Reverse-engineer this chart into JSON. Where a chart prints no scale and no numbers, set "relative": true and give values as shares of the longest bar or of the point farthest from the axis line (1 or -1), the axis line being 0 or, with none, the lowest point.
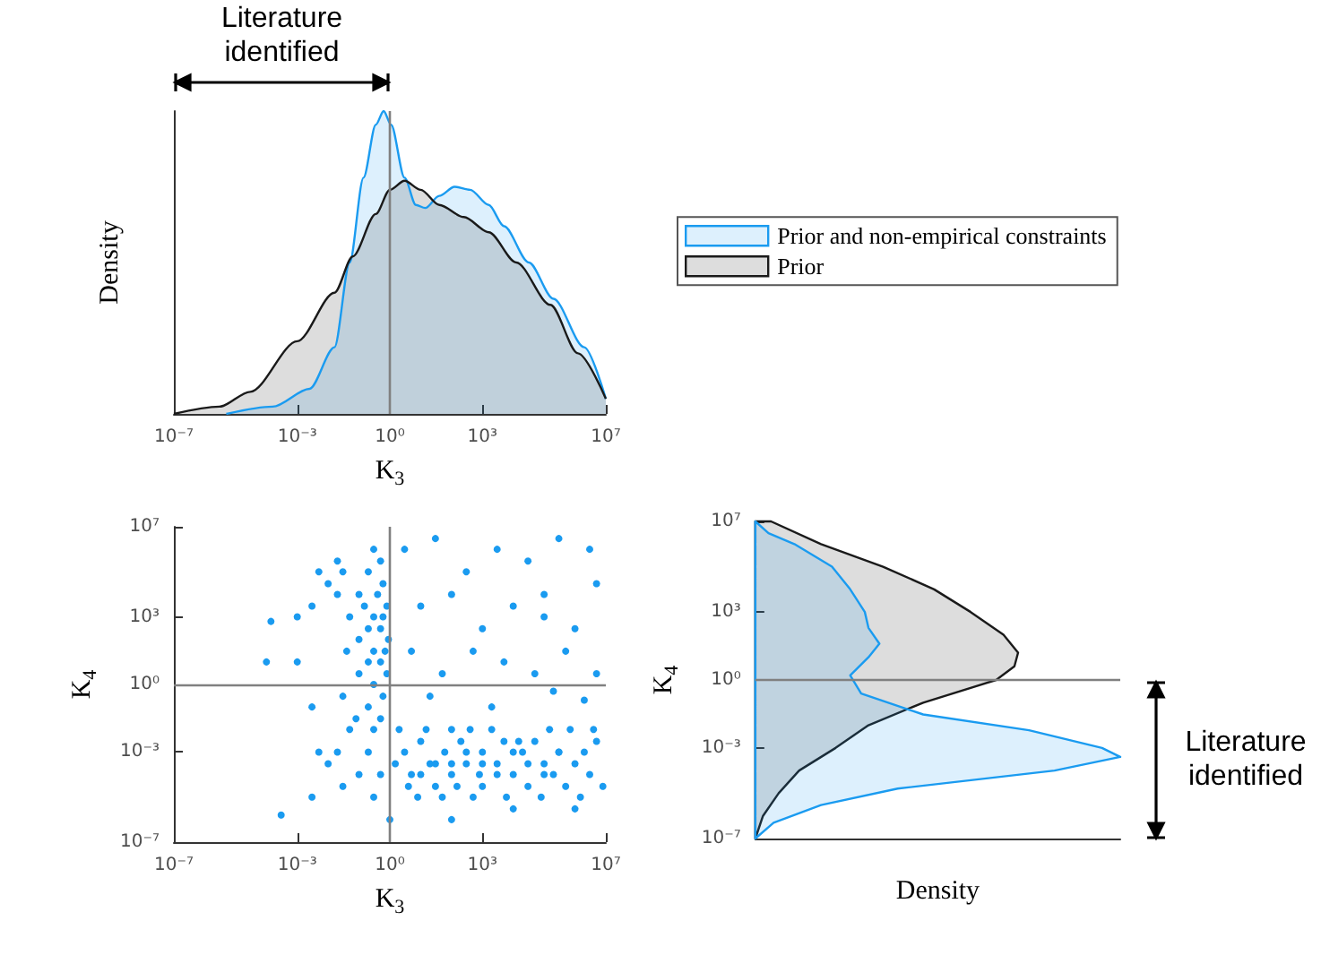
{
  "chart_data": [
    {
      "type": "area",
      "relative": true,
      "log": "x",
      "xlabel": "K$_{3}$",
      "ylabel": "Density",
      "legend": "right",
      "xlim": [
        1e-07,
        10000000.0
      ],
      "xticks": [
        {
          "value": 1e-07,
          "label": "10⁻⁷"
        },
        {
          "value": 0.001,
          "label": "10⁻³"
        },
        {
          "value": 1,
          "label": "10⁰"
        },
        {
          "value": 1000,
          "label": "10³"
        },
        {
          "value": 10000000.0,
          "label": "10⁷"
        }
      ],
      "ref_lines": [
        {
          "axis": "x",
          "value": 1,
          "color": "#808080"
        }
      ],
      "annotations": [
        "Literature identified"
      ],
      "series": [
        {
          "name": "Prior and non-empirical constraints",
          "color": "#1a9bf0",
          "x": [
            5e-06,
            0.00016,
            0.0025,
            0.016,
            0.05,
            0.14,
            0.35,
            0.63,
            1.1,
            3,
            7,
            14,
            40,
            125,
            400,
            1600,
            5000,
            32000,
            200000.0,
            2000000.0,
            10000000.0
          ],
          "values": [
            0,
            0.024,
            0.083,
            0.22,
            0.5,
            0.78,
            0.955,
            1,
            0.955,
            0.78,
            0.69,
            0.68,
            0.72,
            0.75,
            0.74,
            0.69,
            0.62,
            0.5,
            0.38,
            0.22,
            0.05
          ]
        },
        {
          "name": "Prior",
          "color": "#1a1a1a",
          "x": [
            1e-07,
            3e-06,
            3e-05,
            0.001,
            0.016,
            0.063,
            0.35,
            1,
            3,
            10,
            40,
            250,
            1600,
            12500,
            160000,
            1250000.0,
            10000000.0
          ],
          "values": [
            0,
            0.024,
            0.073,
            0.24,
            0.4,
            0.52,
            0.66,
            0.74,
            0.77,
            0.74,
            0.69,
            0.65,
            0.6,
            0.5,
            0.36,
            0.2,
            0.05
          ]
        }
      ]
    },
    {
      "type": "scatter",
      "log": "xy",
      "xlabel": "K$_{3}$",
      "ylabel": "K$_{4}$",
      "marker": "circle",
      "xlim": [
        1e-07,
        10000000.0
      ],
      "xticks": [
        {
          "value": 1e-07,
          "label": "10⁻⁷"
        },
        {
          "value": 0.001,
          "label": "10⁻³"
        },
        {
          "value": 1,
          "label": "10⁰"
        },
        {
          "value": 1000,
          "label": "10³"
        },
        {
          "value": 10000000.0,
          "label": "10⁷"
        }
      ],
      "ylim": [
        1e-07,
        10000000.0
      ],
      "yticks": [
        {
          "value": 1e-07,
          "label": "10⁻⁷"
        },
        {
          "value": 0.001,
          "label": "10⁻³"
        },
        {
          "value": 1,
          "label": "10⁰"
        },
        {
          "value": 1000,
          "label": "10³"
        },
        {
          "value": 10000000.0,
          "label": "10⁷"
        }
      ],
      "ref_lines": [
        {
          "axis": "x",
          "value": 1,
          "color": "#808080"
        },
        {
          "axis": "y",
          "value": 1,
          "color": "#808080"
        }
      ],
      "series": [
        {
          "color": "#1a9bf0",
          "x": [
            0.3,
            0.5,
            0.2,
            0.6,
            0.1,
            0.4,
            0.8,
            0.15,
            0.3,
            0.6,
            0.05,
            0.2,
            0.5,
            0.9,
            0.1,
            0.3,
            0.7,
            0.04,
            0.2,
            0.5,
            0.8,
            0.1,
            0.3,
            0.6,
            0.03,
            0.2,
            0.5,
            0.08,
            0.3,
            0.02,
            0.03,
            0.01,
            0.02,
            2,
            3,
            5,
            10,
            20,
            30,
            60,
            100,
            100,
            200,
            300,
            500,
            1000.0,
            1000.0,
            2000.0,
            3000.0,
            5000.0,
            10000.0,
            20000.0,
            30000.0,
            50000.0,
            100000.0,
            200000.0,
            300000.0,
            500000.0,
            1000000.0,
            2000000.0,
            3000000.0,
            5000000.0,
            8000000.0,
            1.5,
            4,
            8,
            15,
            50,
            150,
            400,
            800,
            6000.0,
            15000.0,
            80000.0,
            150000.0,
            700000.0,
            1500000.0,
            4000000.0,
            30,
            300,
            3000.0,
            30000.0,
            300000.0,
            10,
            100,
            1000.0,
            10000.0,
            100000.0,
            0.5,
            0.2,
            0.05,
            0.1,
            0.02,
            0.3,
            0.01,
            0.03,
            0.005,
            0.003,
            3,
            30,
            300,
            3000.0,
            30000.0,
            300000.0,
            3000000.0,
            10,
            100,
            1000.0,
            10000.0,
            100000.0,
            1000000.0,
            5000000.0,
            5,
            50,
            500,
            5000.0,
            50000.0,
            500000.0,
            5000000.0,
            20,
            2000.0,
            200000.0,
            2000000.0,
            100000.0,
            0.003,
            0.001,
            0.003,
            0.005,
            0.001,
            0.0001,
            0.00014,
            0.0003,
            1,
            100,
            10000.0,
            1000000.0
          ],
          "values": [
            1000000.0,
            300000.0,
            100000.0,
            30000.0,
            10000.0,
            10000.0,
            3000.0,
            3000.0,
            1000.0,
            1000.0,
            1000.0,
            300,
            300,
            100,
            100,
            30,
            30,
            30,
            10,
            10,
            3,
            3,
            1,
            0.3,
            0.3,
            0.1,
            0.03,
            0.03,
            0.01,
            300000.0,
            100000.0,
            30000.0,
            10000.0,
            0.01,
            0.001,
            0.0001,
            0.003,
            0.0003,
            3e-05,
            0.001,
            0.01,
            0.0001,
            0.003,
            0.0003,
            1e-05,
            0.001,
            3e-05,
            0.01,
            0.0003,
            0.003,
            0.0001,
            0.001,
            3e-05,
            0.003,
            0.0003,
            0.0001,
            0.001,
            3e-05,
            0.0003,
            0.001,
            0.0001,
            0.003,
            3e-05,
            0.0003,
            3e-05,
            1e-05,
            0.01,
            1e-05,
            3e-05,
            0.01,
            0.0001,
            1e-05,
            0.003,
            1e-05,
            0.01,
            0.01,
            1e-05,
            0.01,
            0.0003,
            0.001,
            0.0001,
            0.0003,
            0.001,
            0.0001,
            0.0003,
            0.0003,
            0.001,
            0.0001,
            0.0001,
            0.001,
            0.01,
            0.0001,
            0.001,
            1e-05,
            0.0003,
            3e-05,
            0.001,
            1e-05,
            1000000.0,
            3000000.0,
            100000.0,
            1000000.0,
            300000.0,
            3000000.0,
            1000000.0,
            3000.0,
            10000.0,
            300,
            3000.0,
            10000.0,
            300,
            30000.0,
            30,
            3,
            30,
            10,
            3,
            30,
            3,
            0.3,
            0.1,
            0.5,
            0.2,
            1000.0,
            3000.0,
            10,
            0.1,
            100000.0,
            1000.0,
            10,
            630,
            1.6e-06,
            1e-06,
            1e-06,
            3e-06,
            3e-06
          ]
        }
      ]
    },
    {
      "type": "area",
      "orientation": "horizontal",
      "relative": true,
      "log": "y",
      "xlabel": "Density",
      "ylabel": "K$_{4}$",
      "ylim": [
        1e-07,
        10000000.0
      ],
      "yticks": [
        {
          "value": 1e-07,
          "label": "10⁻⁷"
        },
        {
          "value": 0.001,
          "label": "10⁻³"
        },
        {
          "value": 1,
          "label": "10⁰"
        },
        {
          "value": 1000,
          "label": "10³"
        },
        {
          "value": 10000000.0,
          "label": "10⁷"
        }
      ],
      "ref_lines": [
        {
          "axis": "y",
          "value": 1,
          "color": "#808080"
        }
      ],
      "annotations": [
        "Literature identified"
      ],
      "series": [
        {
          "color": "#1a1a1a",
          "x": [
            10000000.0,
            1000000.0,
            100000.0,
            10000.0,
            1000.0,
            100,
            16,
            4,
            1,
            0.1,
            0.01,
            0.001,
            0.0001,
            1e-05,
            1e-06,
            1e-07
          ],
          "values": [
            0.043,
            0.18,
            0.35,
            0.49,
            0.59,
            0.68,
            0.72,
            0.71,
            0.66,
            0.46,
            0.31,
            0.22,
            0.12,
            0.064,
            0.021,
            0
          ]
        },
        {
          "color": "#1a9bf0",
          "x": [
            10000000.0,
            3000000.0,
            1000000.0,
            100000.0,
            10000.0,
            1000.0,
            200,
            40,
            10,
            1.6,
            0.25,
            0.03,
            0.006,
            0.001,
            0.0004,
            0.0001,
            1.6e-05,
            3e-06,
            5e-07,
            1e-07
          ],
          "values": [
            0,
            0.036,
            0.107,
            0.21,
            0.26,
            0.3,
            0.31,
            0.34,
            0.31,
            0.26,
            0.29,
            0.46,
            0.75,
            0.95,
            1,
            0.82,
            0.39,
            0.18,
            0.05,
            0
          ]
        }
      ]
    }
  ]
}
